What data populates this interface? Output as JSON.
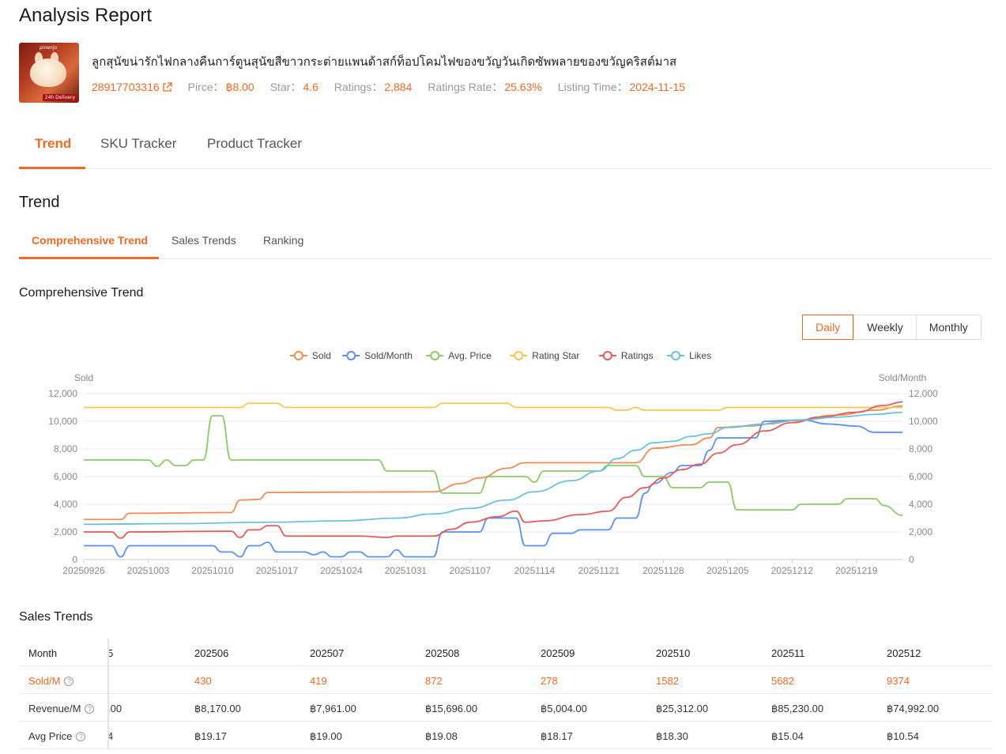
{
  "page": {
    "title": "Analysis Report"
  },
  "product": {
    "image_tag": "pinenjo",
    "image_badge": "24h Delivery",
    "title": "ลูกสุนัขน่ารักไฟกลางคืนการ์ตูนสุนัขสีขาวกระต่ายแพนด้าสก์ท็อปโคมไฟของขวัญวันเกิดซัพพลายของขวัญคริสต์มาส",
    "item_id": "28917703316",
    "price_label": "Pirce：",
    "price": "฿8.00",
    "star_label": "Star：",
    "star": "4.6",
    "ratings_label": "Ratings：",
    "ratings": "2,884",
    "ratings_rate_label": "Ratings Rate：",
    "ratings_rate": "25.63%",
    "listing_label": "Listing Time：",
    "listing_time": "2024-11-15"
  },
  "tabs": [
    {
      "label": "Trend",
      "active": true
    },
    {
      "label": "SKU Tracker",
      "active": false
    },
    {
      "label": "Product Tracker",
      "active": false
    }
  ],
  "trend_section": {
    "title": "Trend"
  },
  "sub_tabs": [
    {
      "label": "Comprehensive Trend",
      "active": true
    },
    {
      "label": "Sales Trends",
      "active": false
    },
    {
      "label": "Ranking",
      "active": false
    }
  ],
  "chart_section": {
    "title": "Comprehensive Trend"
  },
  "period_buttons": [
    {
      "label": "Daily",
      "active": true
    },
    {
      "label": "Weekly",
      "active": false
    },
    {
      "label": "Monthly",
      "active": false
    }
  ],
  "colors": {
    "accent": "#ee6a26",
    "sold": "#f08c55",
    "sold_month": "#5b8ff0",
    "avg_price": "#8cc96a",
    "rating_star": "#f6c652",
    "ratings": "#e45a5a",
    "likes": "#6cc0dd",
    "grid": "#e9e9e9",
    "axis_text": "#888888"
  },
  "chart_data": {
    "type": "line",
    "ylabel_left": "Sold",
    "ylabel_right": "Sold/Month",
    "ylim": [
      0,
      12000
    ],
    "yticks": [
      0,
      2000,
      4000,
      6000,
      8000,
      10000,
      12000
    ],
    "ytick_labels": [
      "0",
      "2,000",
      "4,000",
      "6,000",
      "8,000",
      "10,000",
      "12,000"
    ],
    "x_tick_labels": [
      "20250926",
      "20251003",
      "20251010",
      "20251017",
      "20251024",
      "20251031",
      "20251107",
      "20251114",
      "20251121",
      "20251128",
      "20251205",
      "20251212",
      "20251219"
    ],
    "x_tick_days": [
      0,
      7,
      14,
      21,
      28,
      35,
      42,
      49,
      56,
      63,
      70,
      77,
      84
    ],
    "x_range_days": [
      0,
      89
    ],
    "legend": "top-center",
    "grid": true,
    "series": [
      {
        "name": "Sold",
        "color_key": "sold",
        "points": [
          [
            0,
            2900
          ],
          [
            4,
            2900
          ],
          [
            5,
            3350
          ],
          [
            16,
            3400
          ],
          [
            17,
            4300
          ],
          [
            19,
            4350
          ],
          [
            20,
            4850
          ],
          [
            38,
            4900
          ],
          [
            41,
            5500
          ],
          [
            43,
            5900
          ],
          [
            46,
            6600
          ],
          [
            48,
            7000
          ],
          [
            60,
            7000
          ],
          [
            62,
            8050
          ],
          [
            66,
            8300
          ],
          [
            68,
            8800
          ],
          [
            69,
            9550
          ],
          [
            72,
            9650
          ],
          [
            77,
            10050
          ],
          [
            82,
            10450
          ],
          [
            86,
            10800
          ],
          [
            89,
            11100
          ]
        ]
      },
      {
        "name": "Sold/Month",
        "color_key": "sold_month",
        "points": [
          [
            0,
            1000
          ],
          [
            3,
            1000
          ],
          [
            4,
            200
          ],
          [
            5,
            1000
          ],
          [
            14,
            1000
          ],
          [
            15,
            550
          ],
          [
            16,
            550
          ],
          [
            17,
            200
          ],
          [
            18,
            1000
          ],
          [
            19,
            1000
          ],
          [
            20,
            1250
          ],
          [
            21,
            550
          ],
          [
            24,
            550
          ],
          [
            25,
            350
          ],
          [
            26,
            550
          ],
          [
            27,
            200
          ],
          [
            28,
            200
          ],
          [
            29,
            550
          ],
          [
            30,
            550
          ],
          [
            31,
            200
          ],
          [
            33,
            200
          ],
          [
            34,
            700
          ],
          [
            35,
            200
          ],
          [
            38,
            200
          ],
          [
            39,
            2000
          ],
          [
            43,
            2000
          ],
          [
            44,
            3000
          ],
          [
            47,
            3000
          ],
          [
            48,
            1000
          ],
          [
            50,
            1000
          ],
          [
            51,
            1900
          ],
          [
            53,
            1900
          ],
          [
            54,
            2150
          ],
          [
            57,
            2150
          ],
          [
            58,
            3000
          ],
          [
            60,
            3000
          ],
          [
            61,
            4800
          ],
          [
            62,
            5500
          ],
          [
            64,
            6300
          ],
          [
            65,
            6800
          ],
          [
            67,
            6800
          ],
          [
            68,
            7900
          ],
          [
            69,
            8800
          ],
          [
            73,
            8800
          ],
          [
            74,
            10000
          ],
          [
            76,
            10050
          ],
          [
            78,
            10100
          ],
          [
            81,
            9800
          ],
          [
            84,
            9650
          ],
          [
            86,
            9200
          ],
          [
            89,
            9200
          ]
        ]
      },
      {
        "name": "Avg. Price",
        "color_key": "avg_price",
        "points": [
          [
            0,
            7200
          ],
          [
            7,
            7200
          ],
          [
            8,
            6750
          ],
          [
            9,
            7200
          ],
          [
            10,
            6800
          ],
          [
            11,
            6800
          ],
          [
            12,
            7200
          ],
          [
            13,
            7200
          ],
          [
            14,
            10400
          ],
          [
            15,
            10400
          ],
          [
            16,
            7200
          ],
          [
            32,
            7200
          ],
          [
            33,
            6400
          ],
          [
            38,
            6400
          ],
          [
            39,
            4800
          ],
          [
            43,
            4800
          ],
          [
            44,
            6000
          ],
          [
            48,
            6000
          ],
          [
            49,
            5600
          ],
          [
            50,
            6400
          ],
          [
            56,
            6400
          ],
          [
            57,
            6800
          ],
          [
            60,
            6800
          ],
          [
            61,
            6000
          ],
          [
            63,
            6000
          ],
          [
            64,
            5200
          ],
          [
            67,
            5200
          ],
          [
            68,
            5600
          ],
          [
            70,
            5600
          ],
          [
            71,
            3600
          ],
          [
            77,
            3600
          ],
          [
            78,
            4000
          ],
          [
            82,
            4000
          ],
          [
            83,
            4400
          ],
          [
            86,
            4400
          ],
          [
            87,
            3900
          ],
          [
            89,
            3200
          ]
        ]
      },
      {
        "name": "Rating Star",
        "color_key": "rating_star",
        "points": [
          [
            0,
            11000
          ],
          [
            17,
            11000
          ],
          [
            18,
            11300
          ],
          [
            21,
            11300
          ],
          [
            22,
            11000
          ],
          [
            38,
            11000
          ],
          [
            39,
            11300
          ],
          [
            46,
            11300
          ],
          [
            47,
            11000
          ],
          [
            57,
            11000
          ],
          [
            58,
            10800
          ],
          [
            59,
            10800
          ],
          [
            60,
            11000
          ],
          [
            61,
            10800
          ],
          [
            69,
            10800
          ],
          [
            70,
            11000
          ],
          [
            89,
            11000
          ]
        ]
      },
      {
        "name": "Ratings",
        "color_key": "ratings",
        "points": [
          [
            0,
            2000
          ],
          [
            3,
            2000
          ],
          [
            4,
            1550
          ],
          [
            5,
            2000
          ],
          [
            16,
            2050
          ],
          [
            17,
            1600
          ],
          [
            18,
            2150
          ],
          [
            19,
            2150
          ],
          [
            20,
            2450
          ],
          [
            21,
            2450
          ],
          [
            22,
            1700
          ],
          [
            30,
            1700
          ],
          [
            33,
            1600
          ],
          [
            34,
            1700
          ],
          [
            38,
            1700
          ],
          [
            40,
            2200
          ],
          [
            42,
            2700
          ],
          [
            45,
            3100
          ],
          [
            47,
            3500
          ],
          [
            48,
            2700
          ],
          [
            50,
            2800
          ],
          [
            54,
            3250
          ],
          [
            57,
            3500
          ],
          [
            59,
            4500
          ],
          [
            61,
            5200
          ],
          [
            63,
            5900
          ],
          [
            65,
            6500
          ],
          [
            67,
            6900
          ],
          [
            69,
            7700
          ],
          [
            71,
            8300
          ],
          [
            74,
            9300
          ],
          [
            77,
            9900
          ],
          [
            80,
            10300
          ],
          [
            84,
            10650
          ],
          [
            87,
            11150
          ],
          [
            89,
            11400
          ]
        ]
      },
      {
        "name": "Likes",
        "color_key": "likes",
        "points": [
          [
            0,
            2550
          ],
          [
            10,
            2600
          ],
          [
            20,
            2700
          ],
          [
            28,
            2800
          ],
          [
            34,
            3000
          ],
          [
            38,
            3300
          ],
          [
            42,
            3700
          ],
          [
            46,
            4300
          ],
          [
            49,
            4900
          ],
          [
            53,
            5700
          ],
          [
            56,
            6400
          ],
          [
            58,
            7300
          ],
          [
            60,
            7900
          ],
          [
            62,
            8450
          ],
          [
            64,
            8550
          ],
          [
            66,
            8900
          ],
          [
            68,
            9100
          ],
          [
            70,
            9550
          ],
          [
            74,
            9800
          ],
          [
            78,
            10100
          ],
          [
            82,
            10300
          ],
          [
            86,
            10500
          ],
          [
            89,
            10650
          ]
        ]
      }
    ]
  },
  "sales_section": {
    "title": "Sales Trends"
  },
  "sales_table": {
    "month_label": "Month",
    "partial_month": "5",
    "months": [
      "202506",
      "202507",
      "202508",
      "202509",
      "202510",
      "202511",
      "202512"
    ],
    "rows": [
      {
        "label": "Sold/M",
        "partial": "",
        "values": [
          "430",
          "419",
          "872",
          "278",
          "1582",
          "5682",
          "9374"
        ]
      },
      {
        "label": "Revenue/M",
        "partial": ".00",
        "values": [
          "฿8,170.00",
          "฿7,961.00",
          "฿15,696.00",
          "฿5,004.00",
          "฿25,312.00",
          "฿85,230.00",
          "฿74,992.00"
        ]
      },
      {
        "label": "Avg Price",
        "partial": "4",
        "values": [
          "฿19.17",
          "฿19.00",
          "฿19.08",
          "฿18.17",
          "฿18.30",
          "฿15.04",
          "฿10.54"
        ]
      }
    ]
  }
}
